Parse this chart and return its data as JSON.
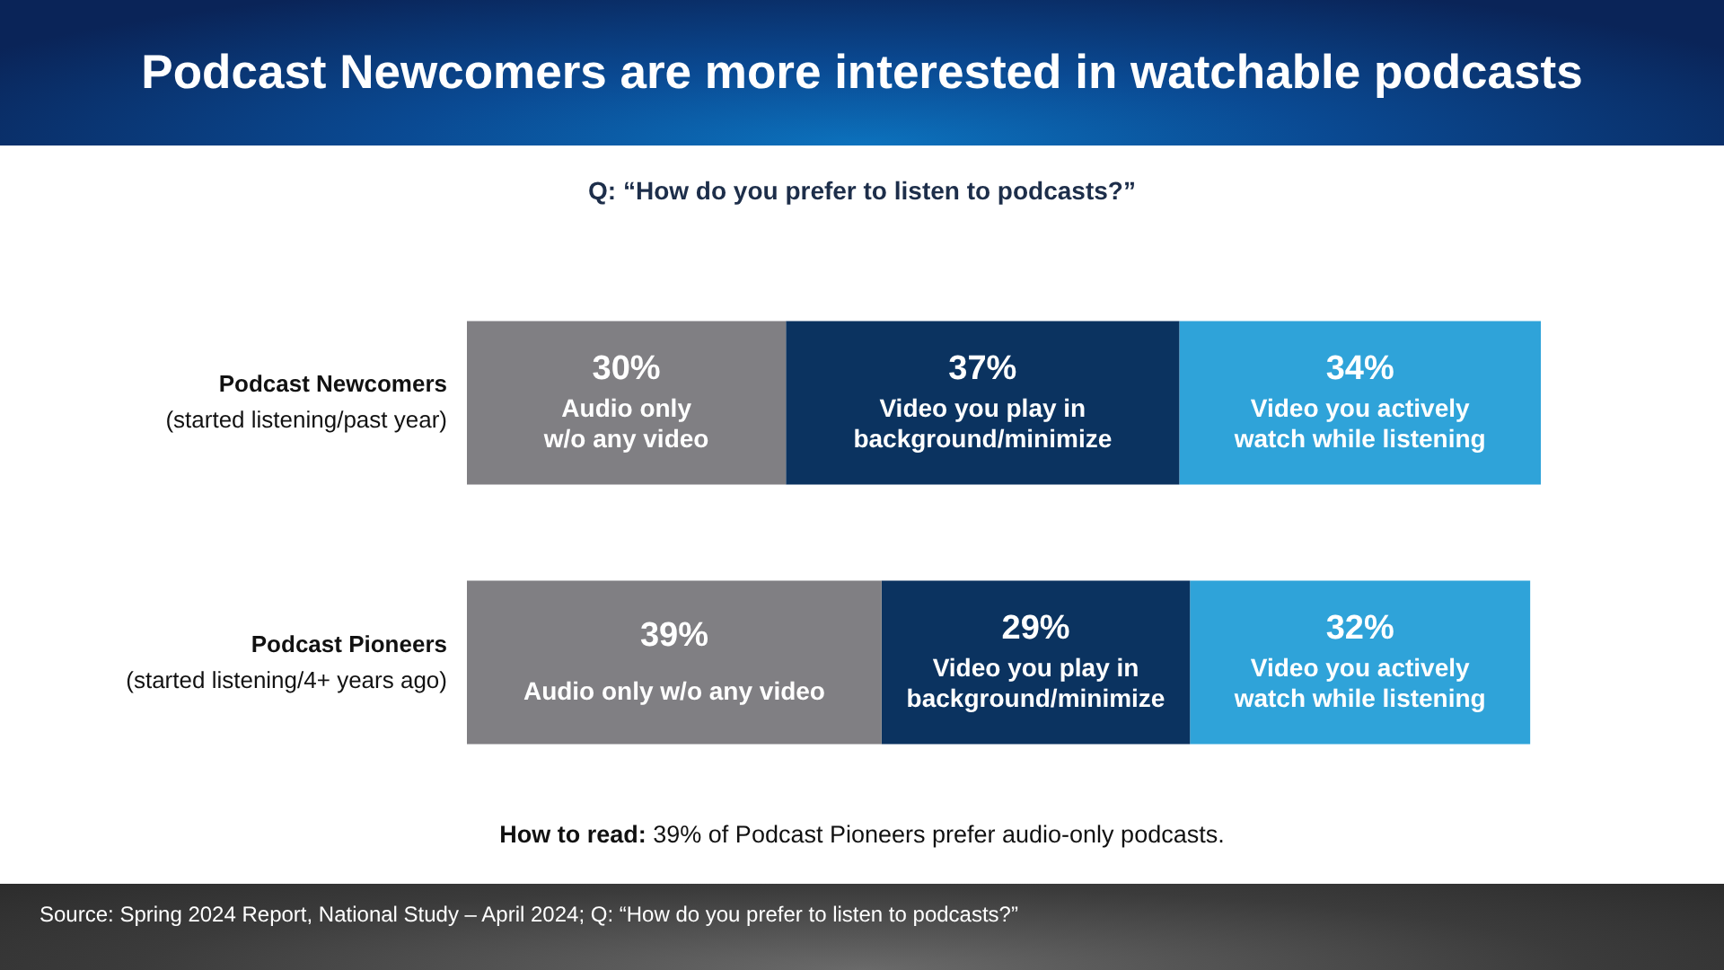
{
  "chart_data": {
    "type": "bar",
    "orientation": "horizontal",
    "stacked": true,
    "title": "Podcast Newcomers are more interested in watchable podcasts",
    "subtitle": "Q: “How do you prefer to listen to podcasts?”",
    "categories": [
      "Podcast Newcomers\n(started listening/past year)",
      "Podcast Pioneers\n(started listening/4+ years ago)"
    ],
    "series": [
      {
        "name": "Audio only w/o any video",
        "color": "#807f83",
        "values": [
          30,
          39
        ],
        "value_labels": [
          "30%",
          "39%"
        ]
      },
      {
        "name": "Video you play in background/minimize",
        "color": "#0b3360",
        "values": [
          37,
          29
        ],
        "value_labels": [
          "37%",
          "29%"
        ]
      },
      {
        "name": "Video you actively watch while listening",
        "color": "#2fa3d9",
        "values": [
          34,
          32
        ],
        "value_labels": [
          "34%",
          "32%"
        ]
      }
    ],
    "xlim": [
      0,
      101
    ],
    "tick_labels": "y",
    "legend": false,
    "grid": false,
    "annotations": [
      "How to read: 39% of Podcast Pioneers prefer audio-only podcasts.",
      "Source: Spring 2024 Report, National Study – April 2024; Q: “How do you prefer to listen to podcasts?”"
    ]
  }
}
